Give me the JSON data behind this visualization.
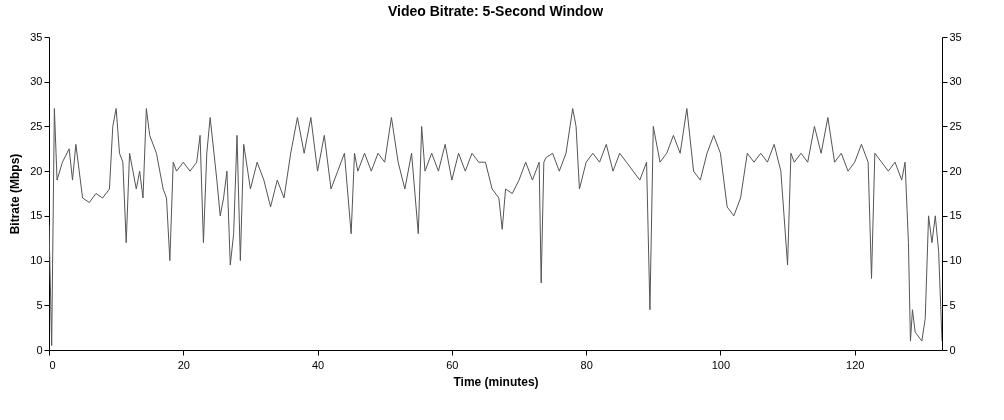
{
  "chart_data": {
    "type": "line",
    "title": "Video Bitrate: 5-Second Window",
    "xlabel": "Time (minutes)",
    "ylabel": "Bitrate (Mbps)",
    "x": [
      0,
      0.4,
      0.8,
      1.2,
      2,
      3,
      3.5,
      4,
      5,
      6,
      7,
      8,
      9,
      9.5,
      10,
      10.5,
      11,
      11.5,
      12,
      13,
      13.5,
      14,
      14.5,
      15,
      16,
      17,
      17.5,
      18,
      18.5,
      19,
      20,
      21,
      22,
      22.5,
      23,
      23.5,
      24,
      25,
      25.5,
      26,
      26.5,
      27,
      27.5,
      28,
      28.5,
      29,
      30,
      31,
      32,
      33,
      34,
      35,
      36,
      37,
      38,
      39,
      40,
      41,
      42,
      43,
      44,
      45,
      45.5,
      46,
      47,
      48,
      49,
      50,
      51,
      52,
      53,
      54,
      55,
      55.5,
      56,
      57,
      58,
      59,
      60,
      61,
      62,
      63,
      64,
      65,
      66,
      67,
      67.5,
      68,
      69,
      70,
      71,
      72,
      73,
      73.3,
      73.7,
      74,
      75,
      76,
      77,
      78,
      78.5,
      79,
      80,
      81,
      82,
      83,
      84,
      85,
      86,
      87,
      88,
      89,
      89.5,
      90,
      91,
      92,
      93,
      94,
      95,
      96,
      97,
      98,
      99,
      100,
      101,
      102,
      103,
      104,
      105,
      106,
      107,
      108,
      109,
      110,
      110.5,
      111,
      112,
      113,
      114,
      115,
      116,
      117,
      118,
      119,
      120,
      121,
      122,
      122.5,
      123,
      124,
      125,
      126,
      127,
      127.5,
      128,
      128.3,
      128.6,
      129,
      130,
      130.5,
      131,
      131.5,
      132,
      132.5,
      133
    ],
    "series": [
      {
        "color": "#555555",
        "values": [
          14,
          0.5,
          27,
          19,
          21,
          22.5,
          19,
          23,
          17,
          16.5,
          17.5,
          17,
          18,
          25,
          27,
          22,
          21,
          12,
          22,
          18,
          20,
          17,
          27,
          24,
          22,
          18,
          17,
          10,
          21,
          20,
          21,
          20,
          21,
          24,
          12,
          22,
          26,
          19,
          15,
          17,
          20,
          9.5,
          13,
          24,
          10,
          23,
          18,
          21,
          19,
          16,
          19,
          17,
          22,
          26,
          22,
          26,
          20,
          24,
          18,
          20,
          22,
          13,
          22,
          20,
          22,
          20,
          22,
          21,
          26,
          21,
          18,
          22,
          13,
          25,
          20,
          22,
          20,
          23,
          19,
          22,
          20,
          22,
          21,
          21,
          18,
          17,
          13.5,
          18,
          17.5,
          19,
          21,
          19,
          21,
          7.5,
          21,
          21.5,
          22,
          20,
          22,
          27,
          25,
          18,
          21,
          22,
          21,
          23,
          20,
          22,
          21,
          20,
          19,
          21,
          4.5,
          25,
          21,
          22,
          24,
          22,
          27,
          20,
          19,
          22,
          24,
          22,
          16,
          15,
          17,
          22,
          21,
          22,
          21,
          23,
          20,
          9.5,
          22,
          21,
          22,
          21,
          25,
          22,
          26,
          21,
          22,
          20,
          21,
          23,
          21,
          8,
          22,
          21,
          20,
          21,
          19,
          21,
          12,
          1,
          4.5,
          2,
          1,
          3.5,
          15,
          12,
          15,
          11,
          1
        ]
      }
    ],
    "xlim": [
      0,
      133
    ],
    "xticks": [
      0,
      20,
      40,
      60,
      80,
      100,
      120
    ],
    "ylim": [
      0,
      35
    ],
    "yticks": [
      0,
      5,
      10,
      15,
      20,
      25,
      30,
      35
    ],
    "y2lim": [
      0,
      35
    ],
    "y2ticks": [
      0,
      5,
      10,
      15,
      20,
      25,
      30,
      35
    ],
    "grid": false,
    "line_style": "solid",
    "marker": "none"
  }
}
